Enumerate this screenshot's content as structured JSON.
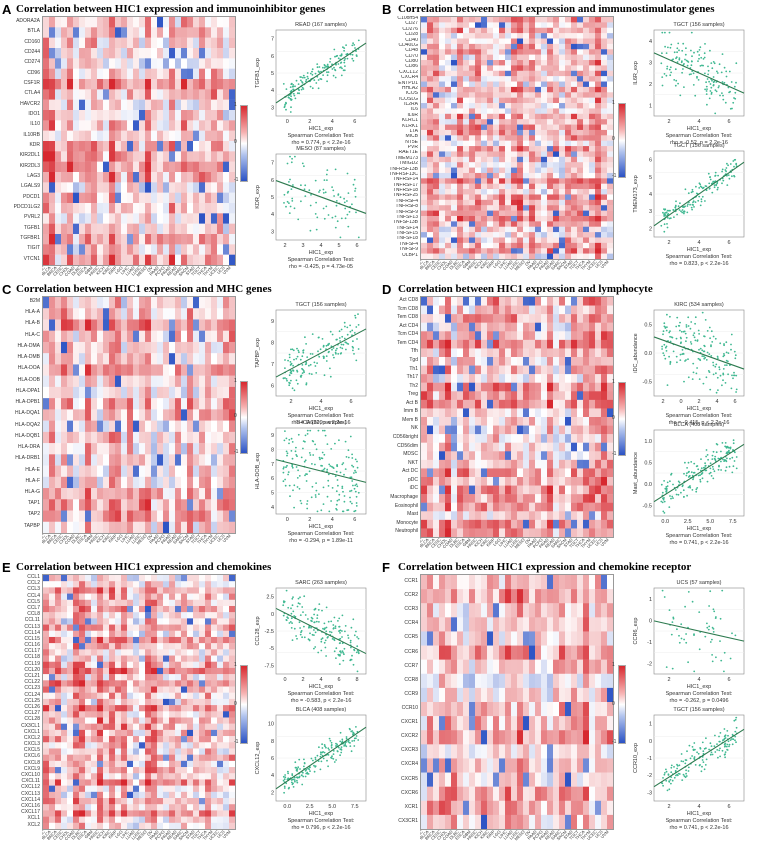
{
  "colors": {
    "pos": "#d7282f",
    "neg": "#2b52c4",
    "mid": "#f2f2f2",
    "point": "#3fb891",
    "line": "#2d7a4f"
  },
  "colorbar_ticks": [
    "1",
    "0",
    "-1"
  ],
  "cancers": [
    "ACC",
    "BLCA",
    "BRCA",
    "CESC",
    "CHOL",
    "COAD",
    "DLBC",
    "ESCA",
    "GBM",
    "HNSC",
    "KICH",
    "KIRC",
    "KIRP",
    "LGG",
    "LIHC",
    "LUAD",
    "LUSC",
    "MESO",
    "OV",
    "PAAD",
    "PCPG",
    "PRAD",
    "READ",
    "SARC",
    "SKCM",
    "STAD",
    "TGCT",
    "THCA",
    "THYM",
    "UCEC",
    "UCS",
    "UVM"
  ],
  "panels": [
    {
      "letter": "A",
      "title": "Correlation between HIC1 expression and immunoinhibitor genes",
      "rows": [
        "ADORA2A",
        "BTLA",
        "CD160",
        "CD244",
        "CD274",
        "CD96",
        "CSF1R",
        "CTLA4",
        "HAVCR2",
        "IDO1",
        "IL10",
        "IL10RB",
        "KDR",
        "KIR2DL1",
        "KIR2DL3",
        "LAG3",
        "LGALS9",
        "PDCD1",
        "PDCD1LG2",
        "PVRL2",
        "TGFB1",
        "TGFBR1",
        "TIGIT",
        "VTCN1"
      ],
      "scatters": [
        {
          "title": "READ (167 samples)",
          "xlabel": "HIC1_exp",
          "ylabel": "TGFB1_exp",
          "caption1": "Spearman Correlation Test:",
          "caption2": "rho = 0.774, p < 2.2e-16",
          "xt": [
            "0",
            "2",
            "4",
            "6"
          ],
          "yt": [
            "3",
            "4",
            "5",
            "6",
            "7"
          ]
        },
        {
          "title": "MESO (87 samples)",
          "xlabel": "HIC1_exp",
          "ylabel": "KDR_exp",
          "caption1": "Spearman Correlation Test:",
          "caption2": "rho = -0.425, p = 4.73e-05",
          "xt": [
            "2",
            "3",
            "4",
            "5",
            "6"
          ],
          "yt": [
            "3",
            "4",
            "5",
            "6",
            "7"
          ]
        }
      ]
    },
    {
      "letter": "B",
      "title": "Correlation between HIC1 expression and immunostimulator genes",
      "rows": [
        "C10orf54",
        "CD27",
        "CD276",
        "CD28",
        "CD40",
        "CD40LG",
        "CD48",
        "CD70",
        "CD80",
        "CD86",
        "CXCL12",
        "CXCR4",
        "ENTPD1",
        "HHLA2",
        "ICOS",
        "ICOSLG",
        "IL2RA",
        "IL6",
        "IL6R",
        "KLRC1",
        "KLRK1",
        "LTA",
        "MICB",
        "NT5E",
        "PVR",
        "RAET1E",
        "TMEM173",
        "TMIGD2",
        "TNFRSF13B",
        "TNFRSF13C",
        "TNFRSF14",
        "TNFRSF17",
        "TNFRSF18",
        "TNFRSF25",
        "TNFRSF4",
        "TNFRSF8",
        "TNFRSF9",
        "TNFSF13",
        "TNFSF13B",
        "TNFSF14",
        "TNFSF15",
        "TNFSF18",
        "TNFSF4",
        "TNFSF9",
        "ULBP1"
      ],
      "scatters": [
        {
          "title": "TGCT (156 samples)",
          "xlabel": "HIC1_exp",
          "ylabel": "IL6R_exp",
          "caption1": "Spearman Correlation Test:",
          "caption2": "rho = -0.52, p = 2.2e-16",
          "xt": [
            "2",
            "4",
            "6"
          ],
          "yt": [
            "1",
            "2",
            "3",
            "4"
          ]
        },
        {
          "title": "TGCT (156 samples)",
          "xlabel": "HIC1_exp",
          "ylabel": "TMEM173_exp",
          "caption1": "Spearman Correlation Test:",
          "caption2": "rho = 0.823, p < 2.2e-16",
          "xt": [
            "2",
            "4",
            "6"
          ],
          "yt": [
            "2",
            "3",
            "4",
            "5",
            "6"
          ]
        }
      ]
    },
    {
      "letter": "C",
      "title": "Correlation between HIC1 expression and MHC genes",
      "rows": [
        "B2M",
        "HLA-A",
        "HLA-B",
        "HLA-C",
        "HLA-DMA",
        "HLA-DMB",
        "HLA-DOA",
        "HLA-DOB",
        "HLA-DPA1",
        "HLA-DPB1",
        "HLA-DQA1",
        "HLA-DQA2",
        "HLA-DQB1",
        "HLA-DRA",
        "HLA-DRB1",
        "HLA-E",
        "HLA-F",
        "HLA-G",
        "TAP1",
        "TAP2",
        "TAPBP"
      ],
      "scatters": [
        {
          "title": "TGCT (156 samples)",
          "xlabel": "HIC1_exp",
          "ylabel": "TAPBP_exp",
          "caption1": "Spearman Correlation Test:",
          "caption2": "rho = 0.622, p < 2.2e-16",
          "xt": [
            "2",
            "4",
            "6"
          ],
          "yt": [
            "6",
            "7",
            "8",
            "9"
          ]
        },
        {
          "title": "THCA (509 samples)",
          "xlabel": "HIC1_exp",
          "ylabel": "HLA-DOB_exp",
          "caption1": "Spearman Correlation Test:",
          "caption2": "rho = -0.294, p = 1.89e-11",
          "xt": [
            "0",
            "2",
            "4",
            "6"
          ],
          "yt": [
            "4",
            "5",
            "6",
            "7",
            "8",
            "9"
          ]
        }
      ]
    },
    {
      "letter": "D",
      "title": "Correlation between HIC1 expression and lymphocyte",
      "rows": [
        "Act CD8",
        "Tcm CD8",
        "Tem CD8",
        "Act CD4",
        "Tcm CD4",
        "Tem CD4",
        "Tfh",
        "Tgd",
        "Th1",
        "Th17",
        "Th2",
        "Treg",
        "Act B",
        "Imm B",
        "Mem B",
        "NK",
        "CD56bright",
        "CD56dim",
        "MDSC",
        "NKT",
        "Act DC",
        "pDC",
        "iDC",
        "Macrophage",
        "Eosinophil",
        "Mast",
        "Monocyte",
        "Neutrophil"
      ],
      "scatters": [
        {
          "title": "KIRC (534 samples)",
          "xlabel": "HIC1_exp",
          "ylabel": "iDC_abundance",
          "caption1": "Spearman Correlation Test:",
          "caption2": "rho = -0.415, p < 2.2e-16",
          "xt": [
            "2",
            "0",
            "2",
            "4",
            "6"
          ],
          "yt": [
            "-0.5",
            "0.0",
            "0.5"
          ]
        },
        {
          "title": "BLCA (408 samples)",
          "xlabel": "HIC1_exp",
          "ylabel": "Mast_abundance",
          "caption1": "Spearman Correlation Test:",
          "caption2": "rho = 0.741, p < 2.2e-16",
          "xt": [
            "0.0",
            "2.5",
            "5.0",
            "7.5"
          ],
          "yt": [
            "-0.5",
            "0.0",
            "0.5",
            "1.0"
          ]
        }
      ]
    },
    {
      "letter": "E",
      "title": "Correlation between HIC1 expression and chemokines",
      "rows": [
        "CCL1",
        "CCL2",
        "CCL3",
        "CCL4",
        "CCL5",
        "CCL7",
        "CCL8",
        "CCL11",
        "CCL13",
        "CCL14",
        "CCL15",
        "CCL16",
        "CCL17",
        "CCL18",
        "CCL19",
        "CCL20",
        "CCL21",
        "CCL22",
        "CCL23",
        "CCL24",
        "CCL25",
        "CCL26",
        "CCL27",
        "CCL28",
        "CX3CL1",
        "CXCL1",
        "CXCL2",
        "CXCL3",
        "CXCL5",
        "CXCL6",
        "CXCL8",
        "CXCL9",
        "CXCL10",
        "CXCL11",
        "CXCL12",
        "CXCL13",
        "CXCL14",
        "CXCL16",
        "CXCL17",
        "XCL1",
        "XCL2"
      ],
      "scatters": [
        {
          "title": "SARC (263 samples)",
          "xlabel": "HIC1_exp",
          "ylabel": "CCL28_exp",
          "caption1": "Spearman Correlation Test:",
          "caption2": "rho = -0.583, p < 2.2e-16",
          "xt": [
            "0",
            "2",
            "4",
            "6",
            "8"
          ],
          "yt": [
            "-7.5",
            "-5",
            "-2.5",
            "0",
            "2.5"
          ]
        },
        {
          "title": "BLCA (408 samples)",
          "xlabel": "HIC1_exp",
          "ylabel": "CXCL12_exp",
          "caption1": "Spearman Correlation Test:",
          "caption2": "rho = 0.796, p < 2.2e-16",
          "xt": [
            "0.0",
            "2.5",
            "5.0",
            "7.5"
          ],
          "yt": [
            "2",
            "4",
            "6",
            "8",
            "10"
          ]
        }
      ]
    },
    {
      "letter": "F",
      "title": "Correlation between HIC1 expression and chemokine receptor",
      "rows": [
        "CCR1",
        "CCR2",
        "CCR3",
        "CCR4",
        "CCR5",
        "CCR6",
        "CCR7",
        "CCR8",
        "CCR9",
        "CCR10",
        "CXCR1",
        "CXCR2",
        "CXCR3",
        "CXCR4",
        "CXCR5",
        "CXCR6",
        "XCR1",
        "CX3CR1"
      ],
      "scatters": [
        {
          "title": "UCS (57 samples)",
          "xlabel": "HIC1_exp",
          "ylabel": "CCR6_exp",
          "caption1": "Spearman Correlation Test:",
          "caption2": "rho = -0.262, p = 0.0496",
          "xt": [
            "2",
            "4",
            "6"
          ],
          "yt": [
            "-2",
            "-1",
            "0",
            "1"
          ]
        },
        {
          "title": "TGCT (156 samples)",
          "xlabel": "HIC1_exp",
          "ylabel": "CCR10_exp",
          "caption1": "Spearman Correlation Test:",
          "caption2": "rho = 0.741, p < 2.2e-16",
          "xt": [
            "2",
            "4",
            "6"
          ],
          "yt": [
            "-3",
            "-2",
            "-1",
            "0",
            "1"
          ]
        }
      ]
    }
  ]
}
